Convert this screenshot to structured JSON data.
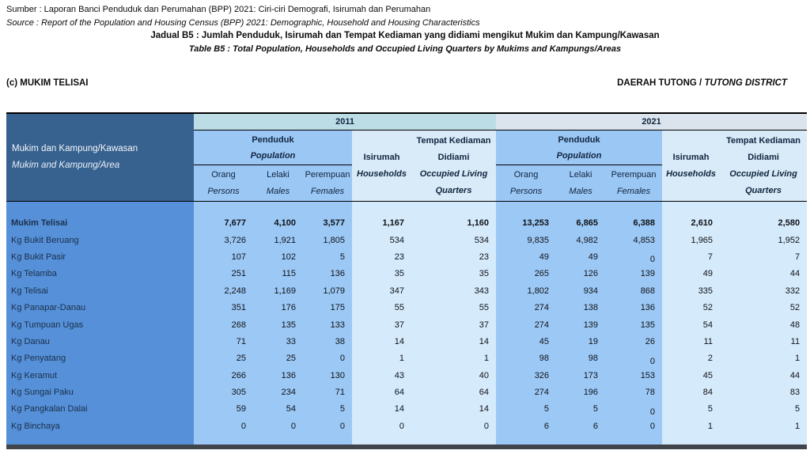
{
  "page": {
    "source_line_ms": "Sumber : Laporan Banci Penduduk dan Perumahan (BPP) 2021: Ciri-ciri Demografi, Isirumah dan Perumahan",
    "source_line_en": "Source : Report of the Population and Housing Census (BPP) 2021:  Demographic, Household and Housing Characteristics",
    "table_title_ms": "Jadual B5 : Jumlah Penduduk, Isirumah dan Tempat Kediaman yang didiami mengikut Mukim dan Kampung/Kawasan",
    "table_title_en": "Table B5 : Total Population, Households and Occupied Living Quarters by Mukims and Kampungs/Areas",
    "section_label": "(c) MUKIM TELISAI",
    "district_label_ms": "DAERAH TUTONG / ",
    "district_label_en": "TUTONG DISTRICT"
  },
  "table": {
    "row_header_ms": "Mukim dan Kampung/Kawasan",
    "row_header_en": "Mukim and Kampung/Area",
    "groups": [
      {
        "year": "2011"
      },
      {
        "year": "2021"
      }
    ],
    "headers": {
      "penduduk_ms": "Penduduk",
      "penduduk_en": "Population",
      "orang_ms": "Orang",
      "orang_en": "Persons",
      "lelaki_ms": "Lelaki",
      "lelaki_en": "Males",
      "perempuan_ms": "Perempuan",
      "perempuan_en": "Females",
      "isirumah_ms": "Isirumah",
      "isirumah_en": "Households",
      "tempat_ms_line1": "Tempat Kediaman",
      "tempat_ms_line2": "Didiami",
      "tempat_en_line1": "Occupied Living",
      "tempat_en_line2": "Quarters"
    },
    "rows": [
      {
        "label": "Mukim Telisai",
        "bold": true,
        "y2011": [
          "7,677",
          "4,100",
          "3,577",
          "1,167",
          "1,160"
        ],
        "y2021": [
          "13,253",
          "6,865",
          "6,388",
          "2,610",
          "2,580"
        ]
      },
      {
        "label": "Kg Bukit Beruang",
        "bold": false,
        "y2011": [
          "3,726",
          "1,921",
          "1,805",
          "534",
          "534"
        ],
        "y2021": [
          "9,835",
          "4,982",
          "4,853",
          "1,965",
          "1,952"
        ]
      },
      {
        "label": "Kg Bukit Pasir",
        "bold": false,
        "y2011": [
          "107",
          "102",
          "5",
          "23",
          "23"
        ],
        "y2021": [
          "49",
          "49",
          "0",
          "7",
          "7"
        ]
      },
      {
        "label": "Kg Telamba",
        "bold": false,
        "y2011": [
          "251",
          "115",
          "136",
          "35",
          "35"
        ],
        "y2021": [
          "265",
          "126",
          "139",
          "49",
          "44"
        ]
      },
      {
        "label": "Kg Telisai",
        "bold": false,
        "y2011": [
          "2,248",
          "1,169",
          "1,079",
          "347",
          "343"
        ],
        "y2021": [
          "1,802",
          "934",
          "868",
          "335",
          "332"
        ]
      },
      {
        "label": "Kg Panapar-Danau",
        "bold": false,
        "y2011": [
          "351",
          "176",
          "175",
          "55",
          "55"
        ],
        "y2021": [
          "274",
          "138",
          "136",
          "52",
          "52"
        ]
      },
      {
        "label": "Kg Tumpuan Ugas",
        "bold": false,
        "y2011": [
          "268",
          "135",
          "133",
          "37",
          "37"
        ],
        "y2021": [
          "274",
          "139",
          "135",
          "54",
          "48"
        ]
      },
      {
        "label": "Kg Danau",
        "bold": false,
        "y2011": [
          "71",
          "33",
          "38",
          "14",
          "14"
        ],
        "y2021": [
          "45",
          "19",
          "26",
          "11",
          "11"
        ]
      },
      {
        "label": "Kg Penyatang",
        "bold": false,
        "y2011": [
          "25",
          "25",
          "0",
          "1",
          "1"
        ],
        "y2021": [
          "98",
          "98",
          "0",
          "2",
          "1"
        ]
      },
      {
        "label": "Kg Keramut",
        "bold": false,
        "y2011": [
          "266",
          "136",
          "130",
          "43",
          "40"
        ],
        "y2021": [
          "326",
          "173",
          "153",
          "45",
          "44"
        ]
      },
      {
        "label": "Kg Sungai Paku",
        "bold": false,
        "y2011": [
          "305",
          "234",
          "71",
          "64",
          "64"
        ],
        "y2021": [
          "274",
          "196",
          "78",
          "84",
          "83"
        ]
      },
      {
        "label": "Kg Pangkalan Dalai",
        "bold": false,
        "y2011": [
          "59",
          "54",
          "5",
          "14",
          "14"
        ],
        "y2021": [
          "5",
          "5",
          "0",
          "5",
          "5"
        ]
      },
      {
        "label": "Kg Binchaya",
        "bold": false,
        "y2011": [
          "0",
          "0",
          "0",
          "0",
          "0"
        ],
        "y2021": [
          "6",
          "6",
          "0",
          "1",
          "1"
        ]
      }
    ],
    "quirks": {
      "lowered_zero_cells": [
        [
          2,
          7
        ],
        [
          8,
          7
        ],
        [
          11,
          7
        ]
      ]
    }
  },
  "colors": {
    "row_header_bg": "#37618e",
    "label_column_bg": "#5590d8",
    "population_bg": "#9cc8f5",
    "households_bg": "#d5eafb",
    "band_2011_bg": "#bcdde6",
    "band_2021_bg": "#dbe4ec",
    "bottom_rule": "#40454c",
    "header_text": "#10253f"
  }
}
